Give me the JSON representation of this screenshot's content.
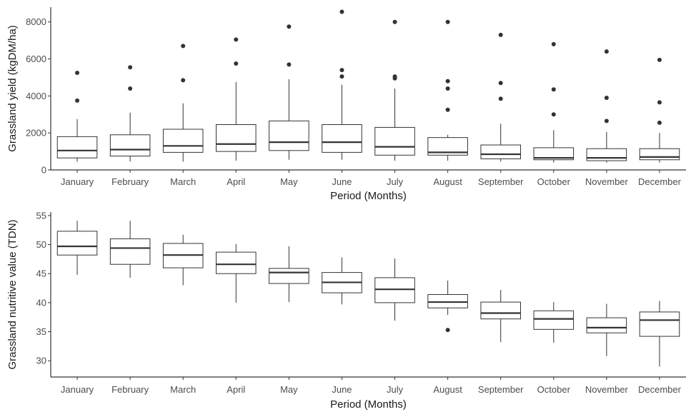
{
  "chart_data": [
    {
      "type": "boxplot",
      "xlabel": "Period (Months)",
      "ylabel": "Grassland yield (kgDM/ha)",
      "ylim": [
        0,
        8800
      ],
      "yticks": [
        0,
        2000,
        4000,
        6000,
        8000
      ],
      "grid": false,
      "categories": [
        "January",
        "February",
        "March",
        "April",
        "May",
        "June",
        "July",
        "August",
        "September",
        "October",
        "November",
        "December"
      ],
      "boxes": [
        {
          "min": 450,
          "q1": 650,
          "median": 1050,
          "q3": 1800,
          "max": 2750,
          "outliers": [
            3750,
            5250
          ]
        },
        {
          "min": 450,
          "q1": 750,
          "median": 1100,
          "q3": 1900,
          "max": 3100,
          "outliers": [
            4400,
            5550
          ]
        },
        {
          "min": 450,
          "q1": 950,
          "median": 1300,
          "q3": 2200,
          "max": 3600,
          "outliers": [
            4850,
            6700
          ]
        },
        {
          "min": 500,
          "q1": 1000,
          "median": 1400,
          "q3": 2450,
          "max": 4750,
          "outliers": [
            5750,
            7050
          ]
        },
        {
          "min": 550,
          "q1": 1050,
          "median": 1500,
          "q3": 2650,
          "max": 4900,
          "outliers": [
            5700,
            7750
          ]
        },
        {
          "min": 550,
          "q1": 950,
          "median": 1500,
          "q3": 2450,
          "max": 4600,
          "outliers": [
            5050,
            5400,
            8550
          ]
        },
        {
          "min": 500,
          "q1": 800,
          "median": 1250,
          "q3": 2300,
          "max": 4400,
          "outliers": [
            4950,
            5050,
            8000
          ]
        },
        {
          "min": 500,
          "q1": 800,
          "median": 950,
          "q3": 1750,
          "max": 1900,
          "outliers": [
            3250,
            4400,
            4800,
            8000
          ]
        },
        {
          "min": 450,
          "q1": 600,
          "median": 850,
          "q3": 1350,
          "max": 2500,
          "outliers": [
            3850,
            4700,
            7300
          ]
        },
        {
          "min": 400,
          "q1": 550,
          "median": 650,
          "q3": 1200,
          "max": 2150,
          "outliers": [
            3000,
            4350,
            6800
          ]
        },
        {
          "min": 400,
          "q1": 500,
          "median": 650,
          "q3": 1150,
          "max": 2050,
          "outliers": [
            2650,
            3900,
            6400
          ]
        },
        {
          "min": 400,
          "q1": 550,
          "median": 700,
          "q3": 1150,
          "max": 2000,
          "outliers": [
            2550,
            3650,
            5950
          ]
        }
      ]
    },
    {
      "type": "boxplot",
      "xlabel": "Period (Months)",
      "ylabel": "Grassland nutritive value (TDN)",
      "ylim": [
        27.2,
        55.6
      ],
      "yticks": [
        30,
        35,
        40,
        45,
        50,
        55
      ],
      "grid": false,
      "categories": [
        "January",
        "February",
        "March",
        "April",
        "May",
        "June",
        "July",
        "August",
        "September",
        "October",
        "November",
        "December"
      ],
      "boxes": [
        {
          "min": 44.8,
          "q1": 48.2,
          "median": 49.7,
          "q3": 52.3,
          "max": 54.1,
          "outliers": []
        },
        {
          "min": 44.3,
          "q1": 46.6,
          "median": 49.4,
          "q3": 51.0,
          "max": 54.1,
          "outliers": []
        },
        {
          "min": 43.0,
          "q1": 46.0,
          "median": 48.2,
          "q3": 50.2,
          "max": 51.7,
          "outliers": []
        },
        {
          "min": 40.0,
          "q1": 45.0,
          "median": 46.6,
          "q3": 48.7,
          "max": 50.1,
          "outliers": []
        },
        {
          "min": 40.1,
          "q1": 43.3,
          "median": 45.2,
          "q3": 45.9,
          "max": 49.7,
          "outliers": []
        },
        {
          "min": 39.7,
          "q1": 41.7,
          "median": 43.5,
          "q3": 45.2,
          "max": 47.8,
          "outliers": []
        },
        {
          "min": 36.9,
          "q1": 40.0,
          "median": 42.3,
          "q3": 44.3,
          "max": 47.6,
          "outliers": []
        },
        {
          "min": 37.9,
          "q1": 39.1,
          "median": 40.1,
          "q3": 41.4,
          "max": 43.8,
          "outliers": [
            35.3
          ]
        },
        {
          "min": 33.2,
          "q1": 37.2,
          "median": 38.2,
          "q3": 40.1,
          "max": 42.2,
          "outliers": []
        },
        {
          "min": 33.1,
          "q1": 35.4,
          "median": 37.2,
          "q3": 38.6,
          "max": 40.1,
          "outliers": []
        },
        {
          "min": 30.8,
          "q1": 34.8,
          "median": 35.7,
          "q3": 37.4,
          "max": 39.8,
          "outliers": []
        },
        {
          "min": 29.0,
          "q1": 34.2,
          "median": 37.0,
          "q3": 38.4,
          "max": 40.3,
          "outliers": []
        }
      ]
    }
  ],
  "colors": {
    "box_stroke": "#333333",
    "box_fill": "#ffffff",
    "outlier": "#333333",
    "axis": "#333333",
    "tick_text": "#4d4d4d",
    "title_text": "#1a1a1a"
  }
}
